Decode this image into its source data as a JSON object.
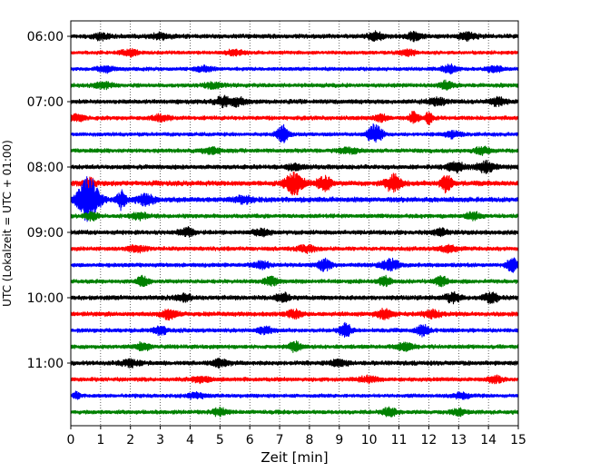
{
  "chart_data": {
    "type": "line",
    "title": "",
    "xlabel": "Zeit  [min]",
    "ylabel": "UTC (Lokalzeit = UTC + 01:00)",
    "xlim": [
      0,
      15
    ],
    "x_ticks": [
      "0",
      "1",
      "2",
      "3",
      "4",
      "5",
      "6",
      "7",
      "8",
      "9",
      "10",
      "11",
      "12",
      "13",
      "14",
      "15"
    ],
    "y_ticks": [
      "06:00",
      "07:00",
      "08:00",
      "09:00",
      "10:00",
      "11:00"
    ],
    "grid": "vertical dotted at each minute",
    "legend": "none",
    "trace_interval_minutes": 15,
    "color_cycle": [
      "#000000",
      "#ff0000",
      "#0000ff",
      "#008000"
    ],
    "rows": [
      {
        "start": "06:00",
        "color": "#000000",
        "amp": 0.22,
        "events": [
          [
            1.0,
            0.35,
            0.25
          ],
          [
            3.0,
            0.3,
            0.3
          ],
          [
            10.2,
            0.45,
            0.25
          ],
          [
            11.5,
            0.4,
            0.25
          ],
          [
            13.3,
            0.4,
            0.3
          ]
        ]
      },
      {
        "start": "06:15",
        "color": "#ff0000",
        "amp": 0.18,
        "events": [
          [
            2.0,
            0.35,
            0.3
          ],
          [
            5.5,
            0.3,
            0.3
          ],
          [
            11.3,
            0.35,
            0.25
          ]
        ]
      },
      {
        "start": "06:30",
        "color": "#0000ff",
        "amp": 0.18,
        "events": [
          [
            1.2,
            0.3,
            0.3
          ],
          [
            4.5,
            0.3,
            0.3
          ],
          [
            12.7,
            0.45,
            0.25
          ],
          [
            14.2,
            0.35,
            0.25
          ]
        ]
      },
      {
        "start": "06:45",
        "color": "#008000",
        "amp": 0.2,
        "events": [
          [
            1.1,
            0.3,
            0.3
          ],
          [
            4.8,
            0.35,
            0.3
          ],
          [
            12.6,
            0.45,
            0.25
          ]
        ]
      },
      {
        "start": "07:00",
        "color": "#000000",
        "amp": 0.22,
        "events": [
          [
            5.1,
            0.55,
            0.25
          ],
          [
            5.6,
            0.45,
            0.25
          ],
          [
            12.3,
            0.4,
            0.3
          ],
          [
            14.3,
            0.4,
            0.25
          ]
        ]
      },
      {
        "start": "07:15",
        "color": "#ff0000",
        "amp": 0.2,
        "events": [
          [
            0.2,
            0.35,
            0.25
          ],
          [
            3.0,
            0.35,
            0.3
          ],
          [
            10.4,
            0.4,
            0.2
          ],
          [
            11.5,
            0.75,
            0.15
          ],
          [
            12.0,
            0.7,
            0.12
          ]
        ]
      },
      {
        "start": "07:30",
        "color": "#0000ff",
        "amp": 0.18,
        "events": [
          [
            7.1,
            1.05,
            0.2
          ],
          [
            10.2,
            1.1,
            0.25
          ],
          [
            12.8,
            0.4,
            0.25
          ]
        ]
      },
      {
        "start": "07:45",
        "color": "#008000",
        "amp": 0.2,
        "events": [
          [
            4.7,
            0.35,
            0.3
          ],
          [
            9.3,
            0.35,
            0.3
          ],
          [
            13.8,
            0.45,
            0.25
          ]
        ]
      },
      {
        "start": "08:00",
        "color": "#000000",
        "amp": 0.22,
        "events": [
          [
            12.9,
            0.55,
            0.3
          ],
          [
            13.9,
            0.6,
            0.3
          ],
          [
            7.5,
            0.35,
            0.25
          ]
        ]
      },
      {
        "start": "08:15",
        "color": "#ff0000",
        "amp": 0.25,
        "events": [
          [
            0.6,
            0.55,
            0.2
          ],
          [
            7.5,
            1.25,
            0.3
          ],
          [
            8.5,
            0.8,
            0.25
          ],
          [
            10.8,
            1.05,
            0.25
          ],
          [
            12.6,
            0.95,
            0.18
          ]
        ]
      },
      {
        "start": "08:30",
        "color": "#0000ff",
        "amp": 0.25,
        "events": [
          [
            0.6,
            2.6,
            0.35
          ],
          [
            1.7,
            1.05,
            0.15
          ],
          [
            2.5,
            0.6,
            0.3
          ],
          [
            5.8,
            0.4,
            0.3
          ]
        ]
      },
      {
        "start": "08:45",
        "color": "#008000",
        "amp": 0.2,
        "events": [
          [
            0.7,
            0.45,
            0.2
          ],
          [
            2.3,
            0.35,
            0.3
          ],
          [
            13.5,
            0.4,
            0.25
          ]
        ]
      },
      {
        "start": "09:00",
        "color": "#000000",
        "amp": 0.22,
        "events": [
          [
            3.9,
            0.45,
            0.25
          ],
          [
            12.4,
            0.5,
            0.2
          ],
          [
            6.4,
            0.35,
            0.3
          ]
        ]
      },
      {
        "start": "09:15",
        "color": "#ff0000",
        "amp": 0.2,
        "events": [
          [
            2.2,
            0.35,
            0.3
          ],
          [
            7.9,
            0.35,
            0.3
          ],
          [
            12.7,
            0.35,
            0.3
          ]
        ]
      },
      {
        "start": "09:30",
        "color": "#0000ff",
        "amp": 0.2,
        "events": [
          [
            8.5,
            0.7,
            0.25
          ],
          [
            10.7,
            0.65,
            0.3
          ],
          [
            14.8,
            0.8,
            0.2
          ],
          [
            6.4,
            0.4,
            0.25
          ]
        ]
      },
      {
        "start": "09:45",
        "color": "#008000",
        "amp": 0.2,
        "events": [
          [
            2.4,
            0.6,
            0.2
          ],
          [
            6.7,
            0.55,
            0.2
          ],
          [
            10.5,
            0.6,
            0.2
          ],
          [
            12.4,
            0.55,
            0.2
          ]
        ]
      },
      {
        "start": "10:00",
        "color": "#000000",
        "amp": 0.22,
        "events": [
          [
            7.1,
            0.5,
            0.25
          ],
          [
            12.8,
            0.55,
            0.25
          ],
          [
            14.1,
            0.55,
            0.25
          ],
          [
            3.8,
            0.4,
            0.25
          ]
        ]
      },
      {
        "start": "10:15",
        "color": "#ff0000",
        "amp": 0.22,
        "events": [
          [
            3.3,
            0.6,
            0.25
          ],
          [
            7.5,
            0.45,
            0.25
          ],
          [
            10.5,
            0.55,
            0.25
          ],
          [
            12.1,
            0.45,
            0.25
          ]
        ]
      },
      {
        "start": "10:30",
        "color": "#0000ff",
        "amp": 0.2,
        "events": [
          [
            3.0,
            0.5,
            0.2
          ],
          [
            9.2,
            0.8,
            0.2
          ],
          [
            11.8,
            0.65,
            0.2
          ],
          [
            6.5,
            0.4,
            0.25
          ]
        ]
      },
      {
        "start": "10:45",
        "color": "#008000",
        "amp": 0.2,
        "events": [
          [
            2.4,
            0.45,
            0.25
          ],
          [
            7.5,
            0.55,
            0.2
          ],
          [
            11.2,
            0.45,
            0.25
          ]
        ]
      },
      {
        "start": "11:00",
        "color": "#000000",
        "amp": 0.22,
        "events": [
          [
            2.0,
            0.35,
            0.3
          ],
          [
            5.0,
            0.4,
            0.3
          ],
          [
            9.0,
            0.35,
            0.3
          ]
        ]
      },
      {
        "start": "11:15",
        "color": "#ff0000",
        "amp": 0.2,
        "events": [
          [
            4.4,
            0.35,
            0.3
          ],
          [
            10.0,
            0.35,
            0.3
          ],
          [
            14.2,
            0.35,
            0.25
          ]
        ]
      },
      {
        "start": "11:30",
        "color": "#0000ff",
        "amp": 0.18,
        "events": [
          [
            0.2,
            0.4,
            0.12
          ],
          [
            4.2,
            0.3,
            0.3
          ],
          [
            13.1,
            0.35,
            0.25
          ]
        ]
      },
      {
        "start": "11:45",
        "color": "#008000",
        "amp": 0.2,
        "events": [
          [
            5.0,
            0.4,
            0.25
          ],
          [
            10.7,
            0.45,
            0.25
          ],
          [
            13.0,
            0.35,
            0.25
          ]
        ]
      }
    ]
  }
}
